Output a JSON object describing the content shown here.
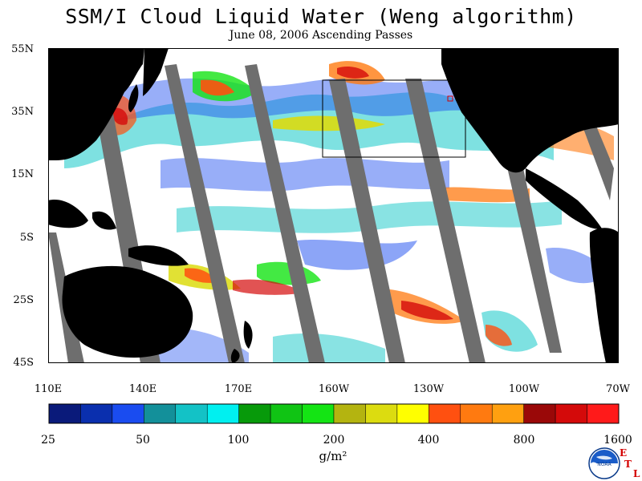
{
  "title": "SSM/I Cloud Liquid Water (Weng algorithm)",
  "subtitle": "June 08, 2006  Ascending Passes",
  "lat_labels": [
    "55N",
    "35N",
    "15N",
    "5S",
    "25S",
    "45S"
  ],
  "lon_labels": [
    "110E",
    "140E",
    "170E",
    "160W",
    "130W",
    "100W",
    "70W"
  ],
  "colorbar": {
    "colors": [
      "#0a1a7a",
      "#0a2fae",
      "#1a4cf0",
      "#13909a",
      "#13c2c6",
      "#00f0f0",
      "#079a0a",
      "#10c414",
      "#14e414",
      "#b4b410",
      "#dcdc10",
      "#ffff00",
      "#ff5010",
      "#ff7a10",
      "#ffa010",
      "#9a0808",
      "#d40a0a",
      "#ff1a1a"
    ],
    "labels": [
      "25",
      "50",
      "100",
      "200",
      "400",
      "800",
      "1600"
    ],
    "units": "g/m²"
  },
  "logo": {
    "text": "NOAA",
    "icon": "noaa-logo"
  },
  "etl": {
    "e": "E",
    "t": "T",
    "l": "L"
  },
  "colors": {
    "land": "#000000",
    "no_data": "#6e6e6e",
    "background": "#ffffff",
    "box": "#000000"
  }
}
